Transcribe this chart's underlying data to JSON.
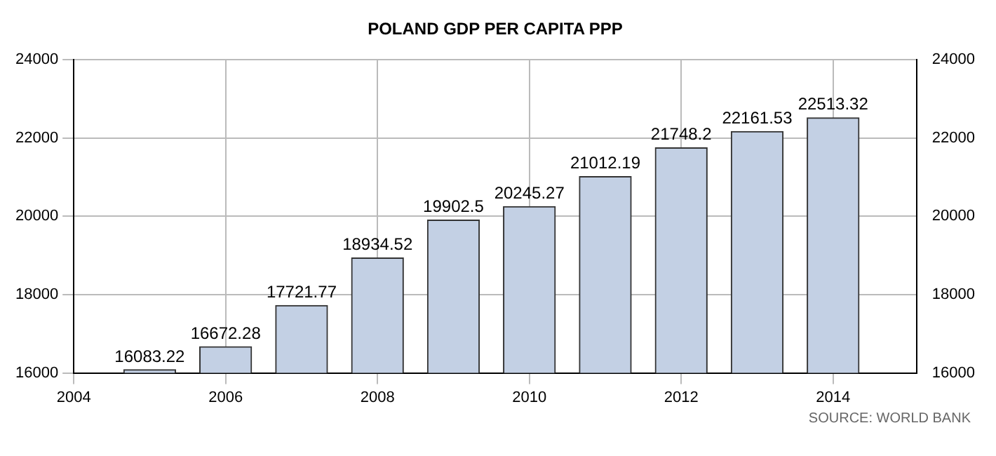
{
  "chart_data": {
    "type": "bar",
    "title": "POLAND GDP PER CAPITA PPP",
    "x": [
      2005,
      2006,
      2007,
      2008,
      2009,
      2010,
      2011,
      2012,
      2013,
      2014
    ],
    "values": [
      16083.22,
      16672.28,
      17721.77,
      18934.52,
      19902.5,
      20245.27,
      21012.19,
      21748.2,
      22161.53,
      22513.32
    ],
    "color": "#c3d0e4",
    "xlim": [
      2004,
      2015.1
    ],
    "xticks": [
      2004,
      2006,
      2008,
      2010,
      2012,
      2014
    ],
    "ylim": [
      16000,
      24000
    ],
    "yticks": [
      16000,
      18000,
      20000,
      22000,
      24000
    ],
    "y2lim": [
      16000,
      24000
    ],
    "y2ticks": [
      16000,
      18000,
      20000,
      22000,
      24000
    ],
    "grid": true,
    "data_labels": true,
    "annotations": [
      "SOURCE: WORLD BANK"
    ]
  }
}
